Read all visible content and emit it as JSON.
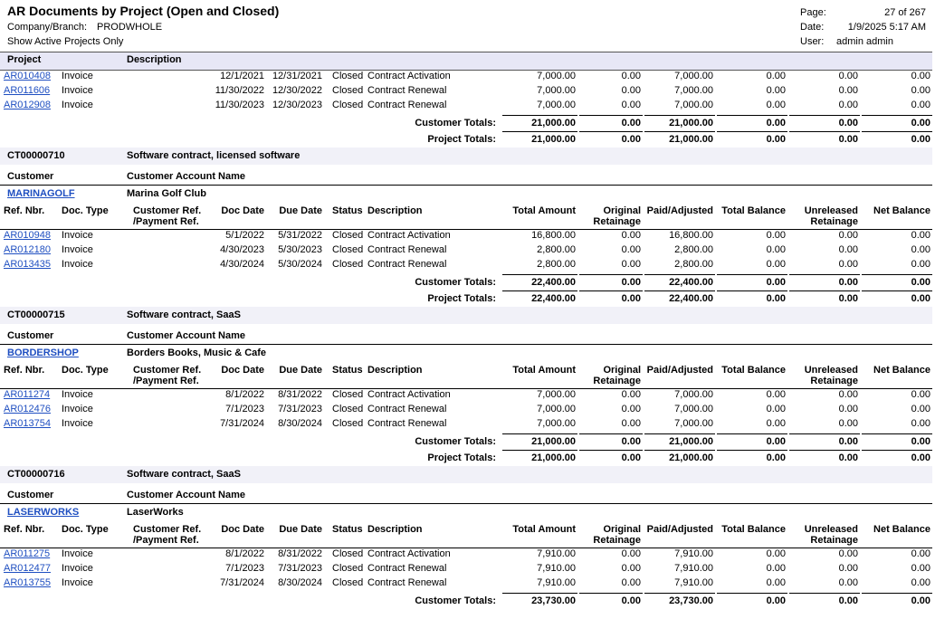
{
  "header": {
    "title": "AR Documents by Project (Open and Closed)",
    "company_label": "Company/Branch:",
    "company": "PRODWHOLE",
    "filter": "Show Active Projects Only",
    "page_label": "Page:",
    "page": "27 of 267",
    "date_label": "Date:",
    "date": "1/9/2025 5:17 AM",
    "user_label": "User:",
    "user": "admin admin"
  },
  "band": {
    "project": "Project",
    "description": "Description"
  },
  "labels": {
    "customer": "Customer",
    "customer_account_name": "Customer Account Name",
    "customer_totals": "Customer Totals:",
    "project_totals": "Project Totals:"
  },
  "columns": [
    [
      "Ref. Nbr."
    ],
    [
      "Doc. Type"
    ],
    [
      "Customer Ref.",
      "/Payment Ref."
    ],
    [
      "Doc Date"
    ],
    [
      "Due Date"
    ],
    [
      "Status"
    ],
    [
      "Description"
    ],
    [
      "Total Amount"
    ],
    [
      "Original",
      "Retainage"
    ],
    [
      "Paid/Adjusted"
    ],
    [
      "Total Balance"
    ],
    [
      "Unreleased",
      "Retainage"
    ],
    [
      "Net Balance"
    ]
  ],
  "groups": [
    {
      "rows": [
        {
          "ref": "AR010408",
          "type": "Invoice",
          "doc_date": "12/1/2021",
          "due_date": "12/31/2021",
          "status": "Closed",
          "description": "Contract Activation",
          "amounts": [
            "7,000.00",
            "0.00",
            "7,000.00",
            "0.00",
            "0.00",
            "0.00"
          ]
        },
        {
          "ref": "AR011606",
          "type": "Invoice",
          "doc_date": "11/30/2022",
          "due_date": "12/30/2022",
          "status": "Closed",
          "description": "Contract Renewal",
          "amounts": [
            "7,000.00",
            "0.00",
            "7,000.00",
            "0.00",
            "0.00",
            "0.00"
          ]
        },
        {
          "ref": "AR012908",
          "type": "Invoice",
          "doc_date": "11/30/2023",
          "due_date": "12/30/2023",
          "status": "Closed",
          "description": "Contract Renewal",
          "amounts": [
            "7,000.00",
            "0.00",
            "7,000.00",
            "0.00",
            "0.00",
            "0.00"
          ]
        }
      ],
      "customer_totals": [
        "21,000.00",
        "0.00",
        "21,000.00",
        "0.00",
        "0.00",
        "0.00"
      ],
      "project_totals": [
        "21,000.00",
        "0.00",
        "21,000.00",
        "0.00",
        "0.00",
        "0.00"
      ]
    },
    {
      "project": "CT00000710",
      "project_description": "Software contract, licensed software",
      "customer": "MARINAGOLF",
      "customer_name": "Marina Golf Club",
      "rows": [
        {
          "ref": "AR010948",
          "type": "Invoice",
          "doc_date": "5/1/2022",
          "due_date": "5/31/2022",
          "status": "Closed",
          "description": "Contract Activation",
          "amounts": [
            "16,800.00",
            "0.00",
            "16,800.00",
            "0.00",
            "0.00",
            "0.00"
          ]
        },
        {
          "ref": "AR012180",
          "type": "Invoice",
          "doc_date": "4/30/2023",
          "due_date": "5/30/2023",
          "status": "Closed",
          "description": "Contract Renewal",
          "amounts": [
            "2,800.00",
            "0.00",
            "2,800.00",
            "0.00",
            "0.00",
            "0.00"
          ]
        },
        {
          "ref": "AR013435",
          "type": "Invoice",
          "doc_date": "4/30/2024",
          "due_date": "5/30/2024",
          "status": "Closed",
          "description": "Contract Renewal",
          "amounts": [
            "2,800.00",
            "0.00",
            "2,800.00",
            "0.00",
            "0.00",
            "0.00"
          ]
        }
      ],
      "customer_totals": [
        "22,400.00",
        "0.00",
        "22,400.00",
        "0.00",
        "0.00",
        "0.00"
      ],
      "project_totals": [
        "22,400.00",
        "0.00",
        "22,400.00",
        "0.00",
        "0.00",
        "0.00"
      ]
    },
    {
      "project": "CT00000715",
      "project_description": "Software contract, SaaS",
      "customer": "BORDERSHOP",
      "customer_name": "Borders Books, Music & Cafe",
      "rows": [
        {
          "ref": "AR011274",
          "type": "Invoice",
          "doc_date": "8/1/2022",
          "due_date": "8/31/2022",
          "status": "Closed",
          "description": "Contract Activation",
          "amounts": [
            "7,000.00",
            "0.00",
            "7,000.00",
            "0.00",
            "0.00",
            "0.00"
          ]
        },
        {
          "ref": "AR012476",
          "type": "Invoice",
          "doc_date": "7/1/2023",
          "due_date": "7/31/2023",
          "status": "Closed",
          "description": "Contract Renewal",
          "amounts": [
            "7,000.00",
            "0.00",
            "7,000.00",
            "0.00",
            "0.00",
            "0.00"
          ]
        },
        {
          "ref": "AR013754",
          "type": "Invoice",
          "doc_date": "7/31/2024",
          "due_date": "8/30/2024",
          "status": "Closed",
          "description": "Contract Renewal",
          "amounts": [
            "7,000.00",
            "0.00",
            "7,000.00",
            "0.00",
            "0.00",
            "0.00"
          ]
        }
      ],
      "customer_totals": [
        "21,000.00",
        "0.00",
        "21,000.00",
        "0.00",
        "0.00",
        "0.00"
      ],
      "project_totals": [
        "21,000.00",
        "0.00",
        "21,000.00",
        "0.00",
        "0.00",
        "0.00"
      ]
    },
    {
      "project": "CT00000716",
      "project_description": "Software contract, SaaS",
      "customer": "LASERWORKS",
      "customer_name": "LaserWorks",
      "rows": [
        {
          "ref": "AR011275",
          "type": "Invoice",
          "doc_date": "8/1/2022",
          "due_date": "8/31/2022",
          "status": "Closed",
          "description": "Contract Activation",
          "amounts": [
            "7,910.00",
            "0.00",
            "7,910.00",
            "0.00",
            "0.00",
            "0.00"
          ]
        },
        {
          "ref": "AR012477",
          "type": "Invoice",
          "doc_date": "7/1/2023",
          "due_date": "7/31/2023",
          "status": "Closed",
          "description": "Contract Renewal",
          "amounts": [
            "7,910.00",
            "0.00",
            "7,910.00",
            "0.00",
            "0.00",
            "0.00"
          ]
        },
        {
          "ref": "AR013755",
          "type": "Invoice",
          "doc_date": "7/31/2024",
          "due_date": "8/30/2024",
          "status": "Closed",
          "description": "Contract Renewal",
          "amounts": [
            "7,910.00",
            "0.00",
            "7,910.00",
            "0.00",
            "0.00",
            "0.00"
          ]
        }
      ],
      "customer_totals": [
        "23,730.00",
        "0.00",
        "23,730.00",
        "0.00",
        "0.00",
        "0.00"
      ]
    }
  ]
}
